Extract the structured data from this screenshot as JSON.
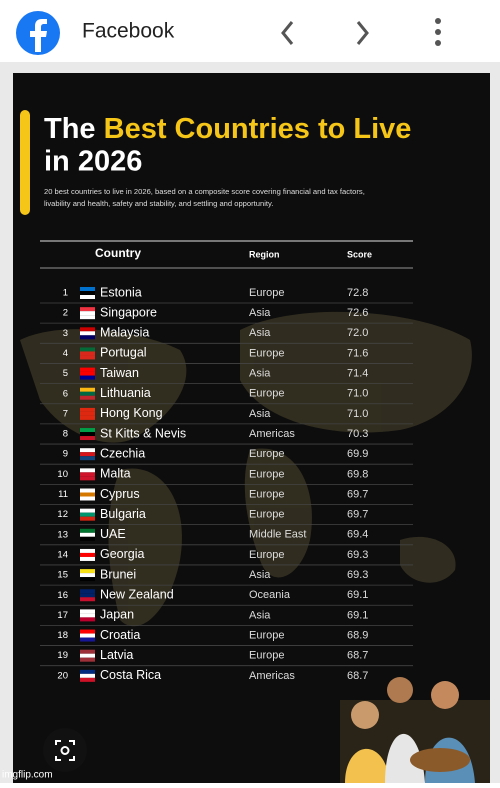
{
  "header": {
    "title": "Facebook"
  },
  "infographic": {
    "title": {
      "prefix": "The",
      "highlight": "Best Countries to Live",
      "suffix": "in 2026"
    },
    "subtitle": [
      "20 best countries to live in 2026, based on a composite score covering financial and tax factors,",
      "livability and health, safety and stability, and settling and opportunity."
    ],
    "table": {
      "columns": [
        "Country",
        "Region",
        "Score"
      ],
      "rows": [
        [
          1,
          "Estonia",
          "Europe",
          "72.8"
        ],
        [
          2,
          "Singapore",
          "Asia",
          "72.6"
        ],
        [
          3,
          "Malaysia",
          "Asia",
          "72.0"
        ],
        [
          4,
          "Portugal",
          "Europe",
          "71.6"
        ],
        [
          5,
          "Taiwan",
          "Asia",
          "71.4"
        ],
        [
          6,
          "Lithuania",
          "Europe",
          "71.0"
        ],
        [
          7,
          "Hong Kong",
          "Asia",
          "71.0"
        ],
        [
          8,
          "St Kitts & Nevis",
          "Americas",
          "70.3"
        ],
        [
          9,
          "Czechia",
          "Europe",
          "69.9"
        ],
        [
          10,
          "Malta",
          "Europe",
          "69.8"
        ],
        [
          11,
          "Cyprus",
          "Europe",
          "69.7"
        ],
        [
          12,
          "Bulgaria",
          "Europe",
          "69.7"
        ],
        [
          13,
          "UAE",
          "Middle East",
          "69.4"
        ],
        [
          14,
          "Georgia",
          "Europe",
          "69.3"
        ],
        [
          15,
          "Brunei",
          "Asia",
          "69.3"
        ],
        [
          16,
          "New Zealand",
          "Oceania",
          "69.1"
        ],
        [
          17,
          "Japan",
          "Asia",
          "69.1"
        ],
        [
          18,
          "Croatia",
          "Europe",
          "68.9"
        ],
        [
          19,
          "Latvia",
          "Europe",
          "68.7"
        ],
        [
          20,
          "Costa Rica",
          "Americas",
          "68.7"
        ]
      ]
    }
  },
  "watermark": "imgflip.com"
}
